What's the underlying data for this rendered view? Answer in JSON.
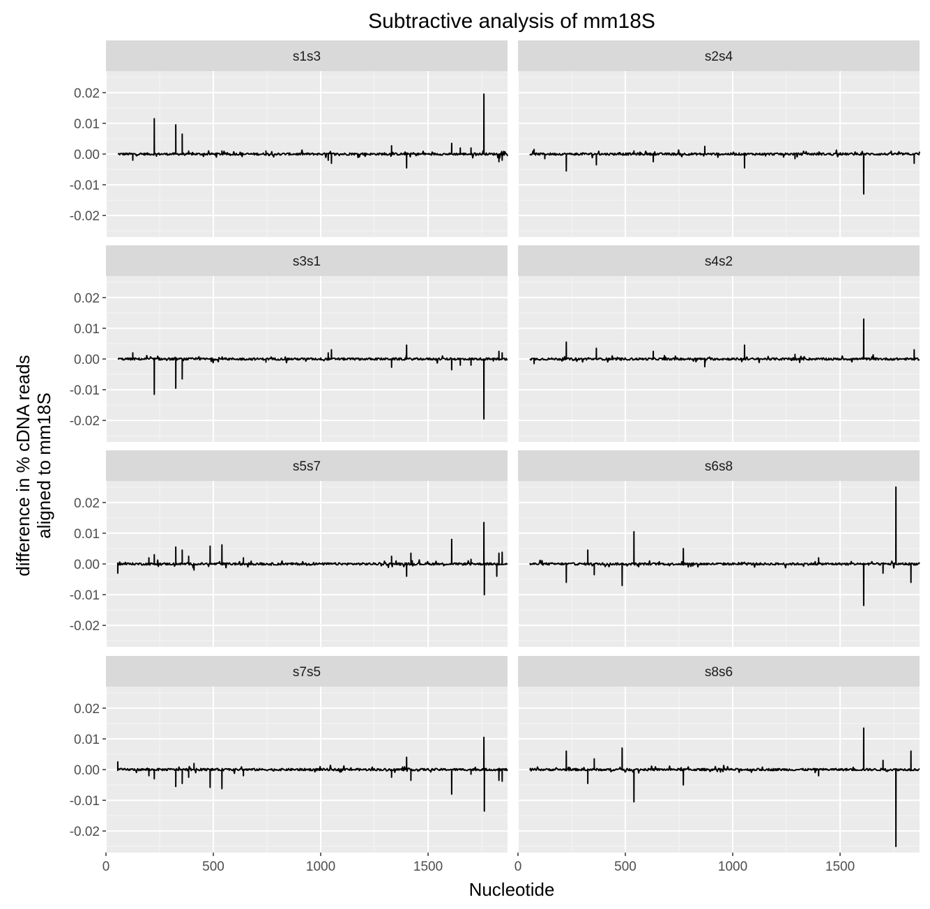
{
  "chart_data": {
    "type": "line",
    "title": "Subtractive analysis of mm18S",
    "xlabel": "Nucleotide",
    "ylabel": [
      "difference in % cDNA reads",
      "aligned to mm18S"
    ],
    "xlim": [
      0,
      1870
    ],
    "ylim": [
      -0.027,
      0.027
    ],
    "x_ticks": [
      0,
      500,
      1000,
      1500
    ],
    "x_tick_labels": [
      "0",
      "500",
      "1000",
      "1500"
    ],
    "y_ticks": [
      -0.02,
      -0.01,
      0.0,
      0.01,
      0.02
    ],
    "y_tick_labels": [
      "-0.02",
      "-0.01",
      "0.00",
      "0.01",
      "0.02"
    ],
    "grid": true,
    "layout": {
      "rows": 4,
      "cols": 2
    },
    "x_range": [
      55,
      1870
    ],
    "facets": [
      {
        "name": "s1s3",
        "peaks": [
          [
            125,
            -0.002
          ],
          [
            225,
            0.0115
          ],
          [
            325,
            0.0095
          ],
          [
            355,
            0.0065
          ],
          [
            385,
            0.001
          ],
          [
            540,
            0.001
          ],
          [
            745,
            0.001
          ],
          [
            1035,
            -0.002
          ],
          [
            1050,
            -0.003
          ],
          [
            1330,
            0.0027
          ],
          [
            1400,
            -0.0045
          ],
          [
            1610,
            0.0035
          ],
          [
            1650,
            0.002
          ],
          [
            1700,
            0.002
          ],
          [
            1760,
            0.0195
          ],
          [
            1830,
            -0.0025
          ],
          [
            1845,
            -0.002
          ]
        ]
      },
      {
        "name": "s2s4",
        "peaks": [
          [
            75,
            0.0015
          ],
          [
            125,
            -0.0015
          ],
          [
            225,
            -0.0055
          ],
          [
            365,
            -0.0035
          ],
          [
            540,
            0.001
          ],
          [
            630,
            -0.0025
          ],
          [
            870,
            0.0025
          ],
          [
            1055,
            -0.0045
          ],
          [
            1290,
            -0.0015
          ],
          [
            1610,
            -0.013
          ],
          [
            1845,
            -0.003
          ]
        ]
      },
      {
        "name": "s3s1",
        "peaks": [
          [
            125,
            0.002
          ],
          [
            225,
            -0.0115
          ],
          [
            325,
            -0.0095
          ],
          [
            355,
            -0.0065
          ],
          [
            745,
            -0.001
          ],
          [
            1035,
            0.002
          ],
          [
            1050,
            0.003
          ],
          [
            1330,
            -0.0027
          ],
          [
            1400,
            0.0045
          ],
          [
            1610,
            -0.0035
          ],
          [
            1650,
            -0.002
          ],
          [
            1700,
            -0.002
          ],
          [
            1760,
            -0.0195
          ],
          [
            1830,
            0.0025
          ],
          [
            1845,
            0.002
          ]
        ]
      },
      {
        "name": "s4s2",
        "peaks": [
          [
            75,
            -0.0015
          ],
          [
            225,
            0.0055
          ],
          [
            365,
            0.0035
          ],
          [
            630,
            0.0025
          ],
          [
            870,
            -0.0025
          ],
          [
            1055,
            0.0045
          ],
          [
            1290,
            0.0015
          ],
          [
            1610,
            0.013
          ],
          [
            1845,
            0.003
          ]
        ]
      },
      {
        "name": "s5s7",
        "peaks": [
          [
            55,
            -0.003
          ],
          [
            200,
            0.002
          ],
          [
            225,
            0.003
          ],
          [
            325,
            0.0055
          ],
          [
            355,
            0.0045
          ],
          [
            385,
            0.0025
          ],
          [
            410,
            -0.002
          ],
          [
            485,
            0.0058
          ],
          [
            540,
            0.0062
          ],
          [
            640,
            0.002
          ],
          [
            1330,
            0.0025
          ],
          [
            1400,
            -0.004
          ],
          [
            1420,
            0.0035
          ],
          [
            1610,
            0.008
          ],
          [
            1700,
            0.0015
          ],
          [
            1760,
            0.0135
          ],
          [
            1762,
            -0.01
          ],
          [
            1830,
            0.0035
          ],
          [
            1845,
            0.0038
          ],
          [
            1820,
            -0.004
          ]
        ]
      },
      {
        "name": "s6s8",
        "peaks": [
          [
            225,
            -0.006
          ],
          [
            325,
            0.0045
          ],
          [
            355,
            -0.0035
          ],
          [
            485,
            -0.007
          ],
          [
            540,
            0.0105
          ],
          [
            770,
            0.005
          ],
          [
            1400,
            0.002
          ],
          [
            1610,
            -0.0135
          ],
          [
            1700,
            -0.003
          ],
          [
            1760,
            0.025
          ],
          [
            1830,
            -0.006
          ]
        ]
      },
      {
        "name": "s7s5",
        "peaks": [
          [
            55,
            0.0025
          ],
          [
            200,
            -0.002
          ],
          [
            225,
            -0.003
          ],
          [
            325,
            -0.0055
          ],
          [
            355,
            -0.0045
          ],
          [
            385,
            -0.0025
          ],
          [
            410,
            0.002
          ],
          [
            485,
            -0.0058
          ],
          [
            540,
            -0.0062
          ],
          [
            640,
            -0.002
          ],
          [
            1330,
            -0.0025
          ],
          [
            1400,
            0.004
          ],
          [
            1420,
            -0.0035
          ],
          [
            1610,
            -0.008
          ],
          [
            1700,
            -0.0015
          ],
          [
            1760,
            0.0105
          ],
          [
            1762,
            -0.0135
          ],
          [
            1830,
            -0.0035
          ],
          [
            1845,
            -0.0038
          ]
        ]
      },
      {
        "name": "s8s6",
        "peaks": [
          [
            225,
            0.006
          ],
          [
            325,
            -0.0045
          ],
          [
            355,
            0.0035
          ],
          [
            485,
            0.007
          ],
          [
            540,
            -0.0105
          ],
          [
            770,
            -0.005
          ],
          [
            1400,
            -0.002
          ],
          [
            1610,
            0.0135
          ],
          [
            1700,
            0.003
          ],
          [
            1760,
            -0.025
          ],
          [
            1830,
            0.006
          ]
        ]
      }
    ]
  }
}
